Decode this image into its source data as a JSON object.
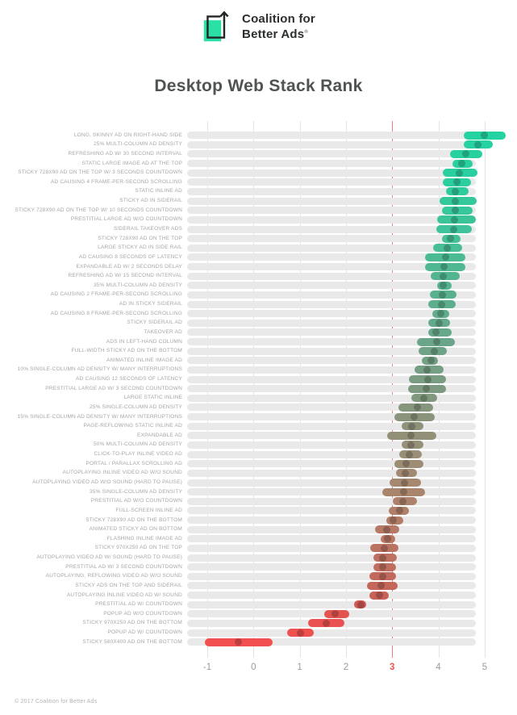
{
  "header": {
    "logo_line1": "Coalition for",
    "logo_line2": "Better Ads",
    "registered_mark": "®"
  },
  "title": "Desktop Web Stack Rank",
  "footer": {
    "copyright": "© 2017 Coalition for Better Ads"
  },
  "colors": {
    "brand_teal": "#2be0a7",
    "logo_ink": "#222625",
    "grid": "#e4e4e4",
    "track": "#e9e9e9",
    "axis_label": "#9b9b9b",
    "highlight_line": "#f0807a",
    "highlight_tick": "#ef5350",
    "row_label": "#a6a6a6",
    "title_text": "#4f5352"
  },
  "chart_data": {
    "type": "range-dot-horizontal-bar",
    "title": "Desktop Web Stack Rank",
    "xlabel": "",
    "ylabel": "",
    "x_ticks": [
      -1,
      0,
      1,
      2,
      3,
      4,
      5
    ],
    "x_range": [
      -1.45,
      5.5
    ],
    "highlight_x": 3,
    "grid": true,
    "legend": "none",
    "rows": [
      {
        "label": "LONG, SKINNY AD ON RIGHT-HAND SIDE",
        "low": 4.55,
        "high": 5.45,
        "mid": 5.0,
        "color": "#25d3a2"
      },
      {
        "label": "25% MULTI-COLUMN AD DENSITY",
        "low": 4.55,
        "high": 5.18,
        "mid": 4.85,
        "color": "#26d2a1"
      },
      {
        "label": "REFRESHING AD W/ 30 SECOND INTERVAL",
        "low": 4.25,
        "high": 4.95,
        "mid": 4.6,
        "color": "#28d0a0"
      },
      {
        "label": "STATIC LARGE IMAGE AD AT THE TOP",
        "low": 4.3,
        "high": 4.75,
        "mid": 4.5,
        "color": "#2acf9f"
      },
      {
        "label": "STICKY 728X90 AD ON THE TOP W/ 3 SECONDS COUNTDOWN",
        "low": 4.1,
        "high": 4.85,
        "mid": 4.45,
        "color": "#2bce9e"
      },
      {
        "label": "AD CAUSING 4 FRAME-PER-SECOND SCROLLING",
        "low": 4.1,
        "high": 4.7,
        "mid": 4.4,
        "color": "#2ccd9e"
      },
      {
        "label": "STATIC INLINE AD",
        "low": 4.17,
        "high": 4.66,
        "mid": 4.37,
        "color": "#30cb9c"
      },
      {
        "label": "STICKY AD IN SIDERAIL",
        "low": 4.03,
        "high": 4.83,
        "mid": 4.36,
        "color": "#34c89b"
      },
      {
        "label": "STICKY 728X90 AD ON THE TOP W/ 10 SECONDS COUNTDOWN",
        "low": 4.07,
        "high": 4.74,
        "mid": 4.36,
        "color": "#38c69b"
      },
      {
        "label": "PRESTITIAL LARGE AD W/O COUNTDOWN",
        "low": 3.97,
        "high": 4.81,
        "mid": 4.35,
        "color": "#3bc49a"
      },
      {
        "label": "SIDERAIL TAKEOVER ADS",
        "low": 3.96,
        "high": 4.73,
        "mid": 4.34,
        "color": "#3ec39a"
      },
      {
        "label": "STICKY 728X90 AD ON THE TOP",
        "low": 4.07,
        "high": 4.48,
        "mid": 4.26,
        "color": "#43c097"
      },
      {
        "label": "LARGE STICKY AD IN SIDE RAIL",
        "low": 3.88,
        "high": 4.52,
        "mid": 4.19,
        "color": "#47be96"
      },
      {
        "label": "AD CAUSING 8 SECONDS OF LATENCY",
        "low": 3.72,
        "high": 4.58,
        "mid": 4.15,
        "color": "#4bbb94"
      },
      {
        "label": "EXPANDABLE AD W/ 2 SECONDS DELAY",
        "low": 3.72,
        "high": 4.58,
        "mid": 4.13,
        "color": "#4fb792"
      },
      {
        "label": "REFRESHING AD W/ 15 SECOND INTERVAL",
        "low": 3.84,
        "high": 4.46,
        "mid": 4.11,
        "color": "#52b590"
      },
      {
        "label": "35% MULTI-COLUMN AD DENSITY",
        "low": 3.97,
        "high": 4.29,
        "mid": 4.1,
        "color": "#55b390"
      },
      {
        "label": "AD CAUSING 2 FRAME-PER-SECOND SCROLLING",
        "low": 3.81,
        "high": 4.39,
        "mid": 4.08,
        "color": "#59b08e"
      },
      {
        "label": "AD IN STICKY SIDERAIL",
        "low": 3.79,
        "high": 4.37,
        "mid": 4.07,
        "color": "#5dae8d"
      },
      {
        "label": "AD CAUSING 8 FRAME-PER-SECOND SCROLLING",
        "low": 3.87,
        "high": 4.24,
        "mid": 4.06,
        "color": "#60ac8c"
      },
      {
        "label": "STICKY SIDERAIL AD",
        "low": 3.78,
        "high": 4.26,
        "mid": 4.01,
        "color": "#64a98b"
      },
      {
        "label": "TAKEOVER AD",
        "low": 3.78,
        "high": 4.28,
        "mid": 3.94,
        "color": "#67a78a"
      },
      {
        "label": "ADS IN LEFT-HAND COLUMN",
        "low": 3.53,
        "high": 4.36,
        "mid": 3.96,
        "color": "#6ba589"
      },
      {
        "label": "FULL-WIDTH STICKY AD ON THE BOTTOM",
        "low": 3.57,
        "high": 4.19,
        "mid": 3.91,
        "color": "#6fa287"
      },
      {
        "label": "ANIMATED INLINE IMAGE AD",
        "low": 3.64,
        "high": 4.0,
        "mid": 3.84,
        "color": "#73a085"
      },
      {
        "label": "10% SINGLE-COLUMN AD DENSITY W/ MANY INTERRUPTIONS",
        "low": 3.49,
        "high": 4.11,
        "mid": 3.76,
        "color": "#769e84"
      },
      {
        "label": "AD CAUSING 12 SECONDS OF LATENCY",
        "low": 3.36,
        "high": 4.17,
        "mid": 3.78,
        "color": "#7a9c82"
      },
      {
        "label": "PRESTITIAL LARGE AD W/ 3 SECOND COUNTDOWN",
        "low": 3.35,
        "high": 4.17,
        "mid": 3.73,
        "color": "#7d9a81"
      },
      {
        "label": "LARGE STATIC INLINE",
        "low": 3.42,
        "high": 3.97,
        "mid": 3.68,
        "color": "#81987f"
      },
      {
        "label": "25% SINGLE-COLUMN AD DENSITY",
        "low": 3.14,
        "high": 3.88,
        "mid": 3.54,
        "color": "#86967d"
      },
      {
        "label": "15% SINGLE-COLUMN AD DENSITY W/ MANY INTERRUPTIONS",
        "low": 3.05,
        "high": 3.92,
        "mid": 3.47,
        "color": "#8a947c"
      },
      {
        "label": "PAGE-REFLOWING STATIC INLINE AD",
        "low": 3.2,
        "high": 3.67,
        "mid": 3.42,
        "color": "#8e927a"
      },
      {
        "label": "EXPANDABLE AD",
        "low": 2.89,
        "high": 3.95,
        "mid": 3.4,
        "color": "#929178"
      },
      {
        "label": "50% MULTI-COLUMN AD DENSITY",
        "low": 3.21,
        "high": 3.68,
        "mid": 3.4,
        "color": "#969077"
      },
      {
        "label": "CLICK-TO-PLAY INLINE VIDEO AD",
        "low": 3.15,
        "high": 3.64,
        "mid": 3.37,
        "color": "#9a8f76"
      },
      {
        "label": "PORTAL / PARALLAX SCROLLING AD",
        "low": 3.05,
        "high": 3.67,
        "mid": 3.31,
        "color": "#9e8c74"
      },
      {
        "label": "AUTOPLAYING INLINE VIDEO AD W/O SOUND",
        "low": 3.08,
        "high": 3.53,
        "mid": 3.29,
        "color": "#a28a72"
      },
      {
        "label": "AUTOPLAYING VIDEO AD W/O SOUND (HARD TO PAUSE)",
        "low": 2.95,
        "high": 3.63,
        "mid": 3.26,
        "color": "#a68770"
      },
      {
        "label": "35% SINGLE-COLUMN AD DENSITY",
        "low": 2.79,
        "high": 3.72,
        "mid": 3.25,
        "color": "#a9856e"
      },
      {
        "label": "PRESTITIAL AD W/O COUNTDOWN",
        "low": 3.01,
        "high": 3.53,
        "mid": 3.24,
        "color": "#ac826c"
      },
      {
        "label": "FULL-SCREEN INLINE AD",
        "low": 2.92,
        "high": 3.36,
        "mid": 3.17,
        "color": "#af7f69"
      },
      {
        "label": "STICKY 728X90 AD ON THE BOTTOM",
        "low": 2.88,
        "high": 3.24,
        "mid": 3.02,
        "color": "#b27c67"
      },
      {
        "label": "ANIMATED STICKY AD ON BOTTOM",
        "low": 2.63,
        "high": 3.15,
        "mid": 2.89,
        "color": "#b57965"
      },
      {
        "label": "FLASHING INLINE IMAGE AD",
        "low": 2.76,
        "high": 3.07,
        "mid": 2.9,
        "color": "#b87663"
      },
      {
        "label": "STICKY 970X250 AD ON THE TOP",
        "low": 2.52,
        "high": 3.14,
        "mid": 2.83,
        "color": "#ba7361"
      },
      {
        "label": "AUTOPLAYING VIDEO AD W/ SOUND (HARD TO PAUSE)",
        "low": 2.59,
        "high": 3.1,
        "mid": 2.8,
        "color": "#bd705f"
      },
      {
        "label": "PRESTITIAL AD W/ 3 SECOND COUNTDOWN",
        "low": 2.59,
        "high": 3.08,
        "mid": 2.8,
        "color": "#bf6d5e"
      },
      {
        "label": "AUTOPLAYING, REFLOWING VIDEO AD W/O SOUND",
        "low": 2.5,
        "high": 3.08,
        "mid": 2.79,
        "color": "#c1695c"
      },
      {
        "label": "STICKY ADS ON THE TOP AND SIDERAIL",
        "low": 2.46,
        "high": 3.12,
        "mid": 2.76,
        "color": "#c4665a"
      },
      {
        "label": "AUTOPLAYING INLINE VIDEO AD W/ SOUND",
        "low": 2.5,
        "high": 2.92,
        "mid": 2.73,
        "color": "#c86257"
      },
      {
        "label": "PRESTITIAL AD W/ COUNTDOWN",
        "low": 2.18,
        "high": 2.44,
        "mid": 2.32,
        "color": "#d25953"
      },
      {
        "label": "POPUP AD W/O COUNTDOWN",
        "low": 1.53,
        "high": 2.07,
        "mid": 1.77,
        "color": "#e25450"
      },
      {
        "label": "STICKY 970X250 AD ON THE BOTTOM",
        "low": 1.19,
        "high": 1.96,
        "mid": 1.57,
        "color": "#e95250"
      },
      {
        "label": "POPUP AD W/ COUNTDOWN",
        "low": 0.73,
        "high": 1.31,
        "mid": 1.02,
        "color": "#ee504f"
      },
      {
        "label": "STICKY 580X400 AD ON THE BOTTOM",
        "low": -1.05,
        "high": 0.41,
        "mid": -0.32,
        "color": "#f25050"
      }
    ]
  }
}
